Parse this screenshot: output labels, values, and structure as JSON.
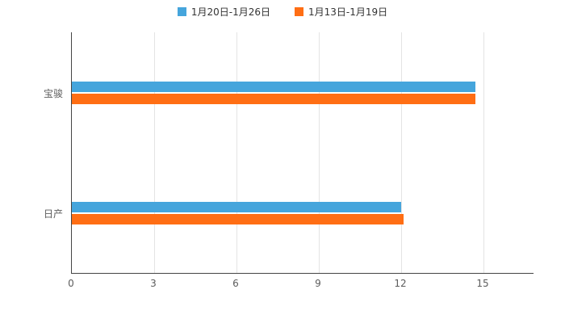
{
  "chart_data": {
    "type": "bar",
    "orientation": "horizontal",
    "title": "",
    "xlabel": "",
    "ylabel": "",
    "categories": [
      "宝骏",
      "日产"
    ],
    "series": [
      {
        "name": "1月20日-1月26日",
        "color": "#45a5dc",
        "values": [
          14.7,
          12.0
        ]
      },
      {
        "name": "1月13日-1月19日",
        "color": "#ff6e14",
        "values": [
          14.7,
          12.1
        ]
      }
    ],
    "xlim": [
      0,
      15
    ],
    "xticks": [
      0,
      3,
      6,
      9,
      12,
      15
    ],
    "grid": true,
    "legend_position": "top",
    "background_color": "#ffffff",
    "axis_color": "#444444",
    "gridline_color": "#e4e4e4",
    "label_color": "#5c5c5c"
  }
}
